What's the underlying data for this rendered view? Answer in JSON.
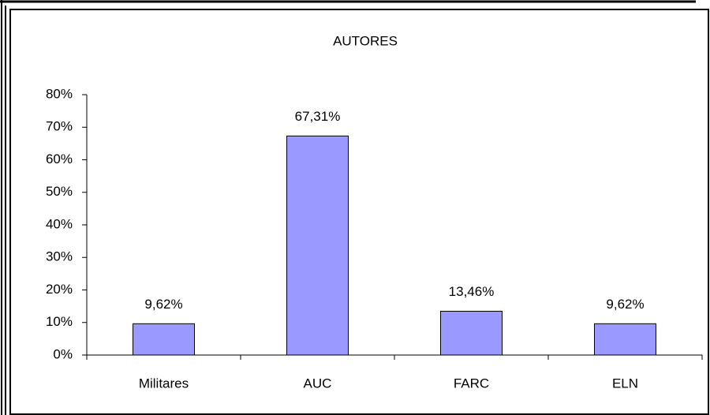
{
  "chart_data": {
    "type": "bar",
    "title": "AUTORES",
    "categories": [
      "Militares",
      "AUC",
      "FARC",
      "ELN"
    ],
    "values": [
      9.62,
      67.31,
      13.46,
      9.62
    ],
    "value_labels": [
      "9,62%",
      "67,31%",
      "13,46%",
      "9,62%"
    ],
    "color": "#9999ff",
    "ylim": [
      0,
      80
    ],
    "yticks": [
      {
        "value": 0,
        "label": "0%"
      },
      {
        "value": 10,
        "label": "10%"
      },
      {
        "value": 20,
        "label": "20%"
      },
      {
        "value": 30,
        "label": "30%"
      },
      {
        "value": 40,
        "label": "40%"
      },
      {
        "value": 50,
        "label": "50%"
      },
      {
        "value": 60,
        "label": "60%"
      },
      {
        "value": 70,
        "label": "70%"
      },
      {
        "value": 80,
        "label": "80%"
      }
    ],
    "grid": false
  }
}
